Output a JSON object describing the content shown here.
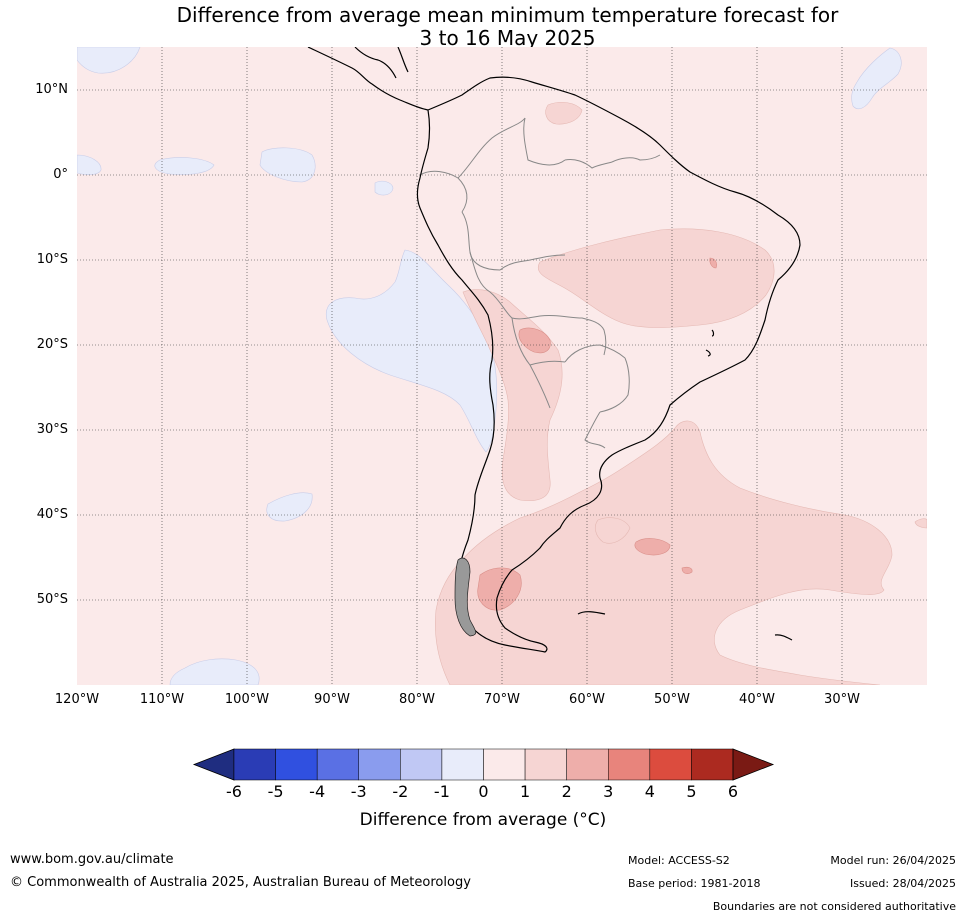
{
  "title_line1": "Difference from average mean minimum temperature forecast for",
  "title_line2": "3 to 16 May 2025",
  "map": {
    "lon_range": [
      -120,
      -20
    ],
    "lat_range": [
      -60,
      15
    ],
    "latitude_labels": [
      {
        "lat": 10,
        "label": "10°N"
      },
      {
        "lat": 0,
        "label": "0°"
      },
      {
        "lat": -10,
        "label": "10°S"
      },
      {
        "lat": -20,
        "label": "20°S"
      },
      {
        "lat": -30,
        "label": "30°S"
      },
      {
        "lat": -40,
        "label": "40°S"
      },
      {
        "lat": -50,
        "label": "50°S"
      }
    ],
    "longitude_labels": [
      {
        "lon": -120,
        "label": "120°W"
      },
      {
        "lon": -110,
        "label": "110°W"
      },
      {
        "lon": -100,
        "label": "100°W"
      },
      {
        "lon": -90,
        "label": "90°W"
      },
      {
        "lon": -80,
        "label": "80°W"
      },
      {
        "lon": -70,
        "label": "70°W"
      },
      {
        "lon": -60,
        "label": "60°W"
      },
      {
        "lon": -50,
        "label": "50°W"
      },
      {
        "lon": -40,
        "label": "40°W"
      },
      {
        "lon": -30,
        "label": "30°W"
      }
    ],
    "background_anomaly_band": "0 to 1",
    "gridlines": "dotted"
  },
  "colorbar": {
    "ticks": [
      "-6",
      "-5",
      "-4",
      "-3",
      "-2",
      "-1",
      "0",
      "1",
      "2",
      "3",
      "4",
      "5",
      "6"
    ],
    "colors": [
      "#1f2d80",
      "#2a3cb5",
      "#3050e0",
      "#5a70e4",
      "#8a9cee",
      "#c0c8f4",
      "#e8ecfa",
      "#fbeaea",
      "#f6d5d3",
      "#eeaeaa",
      "#e8847c",
      "#dc4c3e",
      "#ac2a20",
      "#7a1a14"
    ],
    "label": "Difference from average (°C)"
  },
  "footer": {
    "website": "www.bom.gov.au/climate",
    "copyright": "© Commonwealth of Australia 2025, Australian Bureau of Meteorology",
    "model": "Model: ACCESS-S2",
    "base_period": "Base period: 1981-2018",
    "model_run": "Model run: 26/04/2025",
    "issued": "Issued: 28/04/2025",
    "disclaimer": "Boundaries are not considered authoritative"
  }
}
